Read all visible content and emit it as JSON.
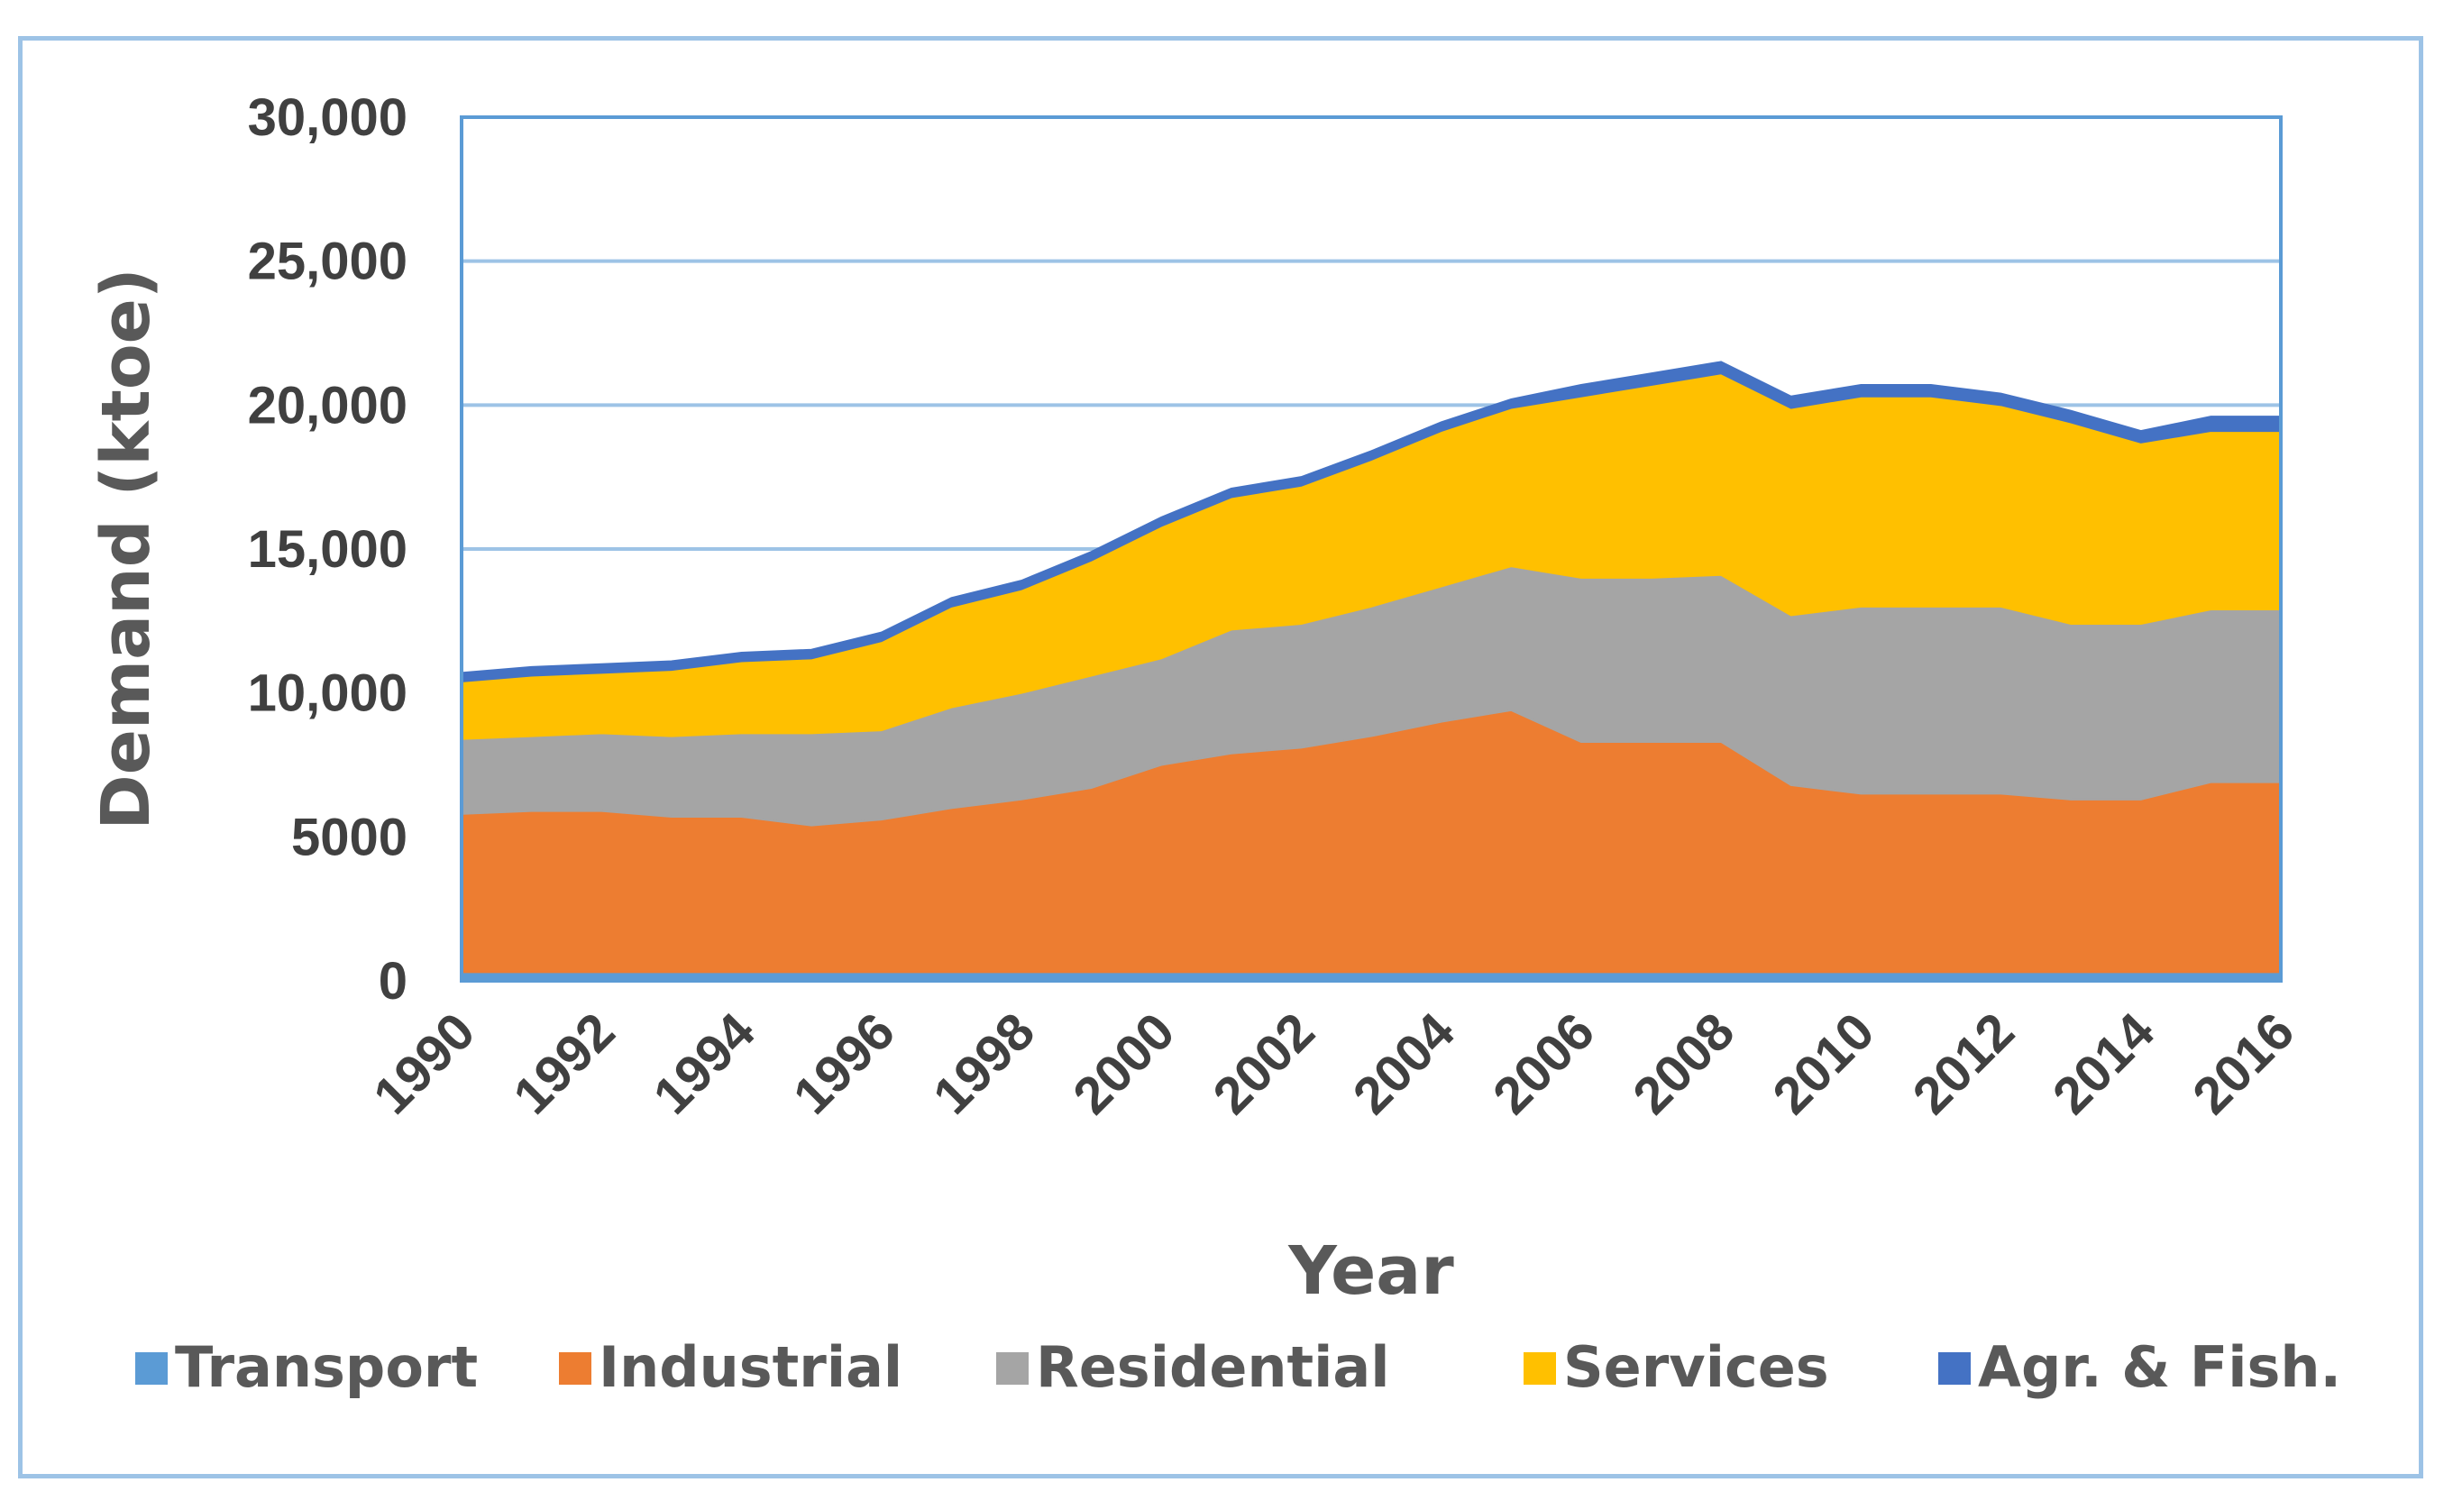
{
  "chart_data": {
    "type": "area",
    "stacked": true,
    "xlabel": "Year",
    "ylabel": "Demand (ktoe)",
    "ylim": [
      0,
      30000
    ],
    "yticks": [
      0,
      5000,
      10000,
      15000,
      20000,
      25000,
      30000
    ],
    "ytick_labels": [
      "0",
      "5000",
      "10,000",
      "15,000",
      "20,000",
      "25,000",
      "30,000"
    ],
    "x": [
      1990,
      1991,
      1992,
      1993,
      1994,
      1995,
      1996,
      1997,
      1998,
      1999,
      2000,
      2001,
      2002,
      2003,
      2004,
      2005,
      2006,
      2007,
      2008,
      2009,
      2010,
      2011,
      2012,
      2013,
      2014,
      2015,
      2016
    ],
    "xtick_labels": [
      "1990",
      "1992",
      "1994",
      "1996",
      "1998",
      "2000",
      "2002",
      "2004",
      "2006",
      "2008",
      "2010",
      "2012",
      "2014",
      "2016"
    ],
    "grid": true,
    "legend_position": "bottom",
    "series": [
      {
        "name": "Transport",
        "color": "#5b9bd5",
        "values": [
          300,
          300,
          300,
          300,
          300,
          300,
          300,
          300,
          300,
          300,
          300,
          300,
          300,
          300,
          300,
          300,
          300,
          300,
          300,
          300,
          300,
          300,
          300,
          300,
          300,
          300,
          300
        ]
      },
      {
        "name": "Industrial",
        "color": "#ed7d31",
        "values": [
          5500,
          5600,
          5600,
          5400,
          5400,
          5100,
          5300,
          5700,
          6000,
          6400,
          7200,
          7600,
          7800,
          8200,
          8700,
          9100,
          8000,
          8000,
          8000,
          6500,
          6200,
          6200,
          6200,
          6000,
          6000,
          6600,
          6600
        ]
      },
      {
        "name": "Residential",
        "color": "#a5a5a5",
        "values": [
          2600,
          2600,
          2700,
          2800,
          2900,
          3200,
          3100,
          3500,
          3700,
          3900,
          3700,
          4300,
          4300,
          4500,
          4700,
          5000,
          5700,
          5700,
          5800,
          5900,
          6500,
          6500,
          6500,
          6100,
          6100,
          6000,
          6000
        ]
      },
      {
        "name": "Services",
        "color": "#ffc000",
        "values": [
          2000,
          2100,
          2100,
          2300,
          2500,
          2600,
          3100,
          3500,
          3600,
          4000,
          4600,
          4600,
          4800,
          5100,
          5400,
          5500,
          6300,
          6700,
          7000,
          7200,
          7300,
          7300,
          7000,
          7000,
          6300,
          6200,
          6200
        ]
      },
      {
        "name": "Agr. & Fish.",
        "color": "#4472c4",
        "values": [
          300,
          300,
          300,
          300,
          300,
          300,
          300,
          300,
          300,
          300,
          300,
          300,
          300,
          300,
          300,
          300,
          400,
          400,
          400,
          400,
          400,
          400,
          400,
          400,
          400,
          500,
          500
        ]
      }
    ]
  }
}
